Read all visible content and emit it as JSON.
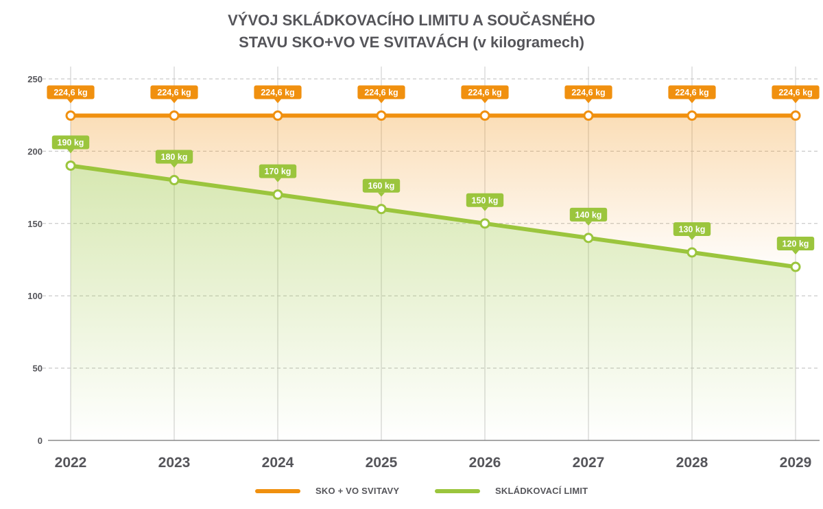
{
  "title": {
    "line1": "VÝVOJ SKLÁDKOVACÍHO LIMITU A SOUČASNÉHO",
    "line2": "STAVU SKO+VO VE SVITAVÁCH (v kilogramech)"
  },
  "colors": {
    "orange": "#f0900f",
    "green": "#9bc53d",
    "grid": "#bdbdbd",
    "text": "#55555a"
  },
  "chart_data": {
    "type": "line",
    "categories": [
      "2022",
      "2023",
      "2024",
      "2025",
      "2026",
      "2027",
      "2028",
      "2029"
    ],
    "ylim": [
      0,
      250
    ],
    "yticks": [
      "0",
      "50",
      "100",
      "150",
      "200",
      "250"
    ],
    "grid": true,
    "legend_position": "bottom",
    "series": [
      {
        "name": "SKO + VO SVITAVY",
        "values": [
          224.6,
          224.6,
          224.6,
          224.6,
          224.6,
          224.6,
          224.6,
          224.6
        ],
        "labels": [
          "224,6 kg",
          "224,6 kg",
          "224,6 kg",
          "224,6 kg",
          "224,6 kg",
          "224,6 kg",
          "224,6 kg",
          "224,6 kg"
        ],
        "color": "#f0900f"
      },
      {
        "name": "SKLÁDKOVACÍ LIMIT",
        "values": [
          190,
          180,
          170,
          160,
          150,
          140,
          130,
          120
        ],
        "labels": [
          "190 kg",
          "180 kg",
          "170 kg",
          "160 kg",
          "150 kg",
          "140 kg",
          "130 kg",
          "120 kg"
        ],
        "color": "#9bc53d"
      }
    ]
  }
}
